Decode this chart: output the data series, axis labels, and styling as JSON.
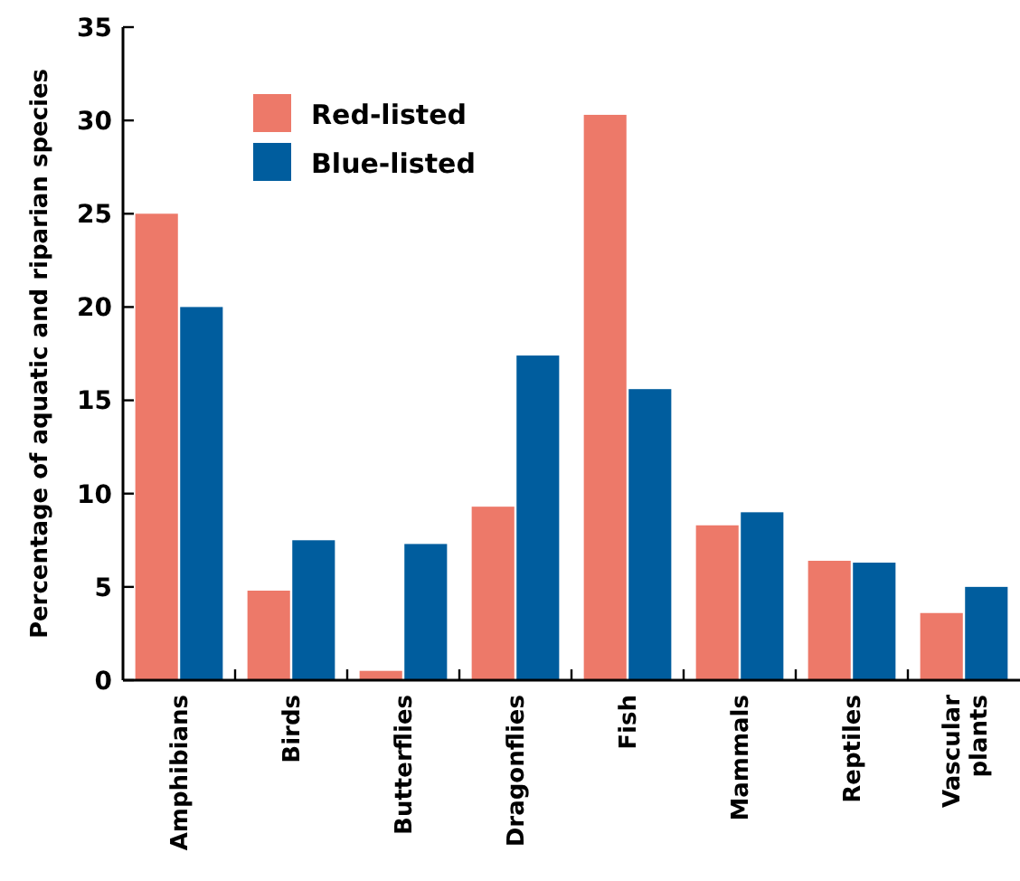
{
  "chart_data": {
    "type": "bar",
    "ylabel": "Percentage of aquatic and riparian species",
    "categories": [
      "Amphibians",
      "Birds",
      "Butterflies",
      "Dragonflies",
      "Fish",
      "Mammals",
      "Reptiles",
      "Vascular plants"
    ],
    "series": [
      {
        "name": "Red-listed",
        "color": "#ed7969",
        "values": [
          25,
          4.8,
          0.5,
          9.3,
          30.3,
          8.3,
          6.4,
          3.6
        ]
      },
      {
        "name": "Blue-listed",
        "color": "#005d9e",
        "values": [
          20,
          7.5,
          7.3,
          17.4,
          15.6,
          9.0,
          6.3,
          5.0
        ]
      }
    ],
    "ylim": [
      0,
      35
    ],
    "yticks": [
      0,
      5,
      10,
      15,
      20,
      25,
      30,
      35
    ],
    "grid": false,
    "legend": "top left"
  }
}
